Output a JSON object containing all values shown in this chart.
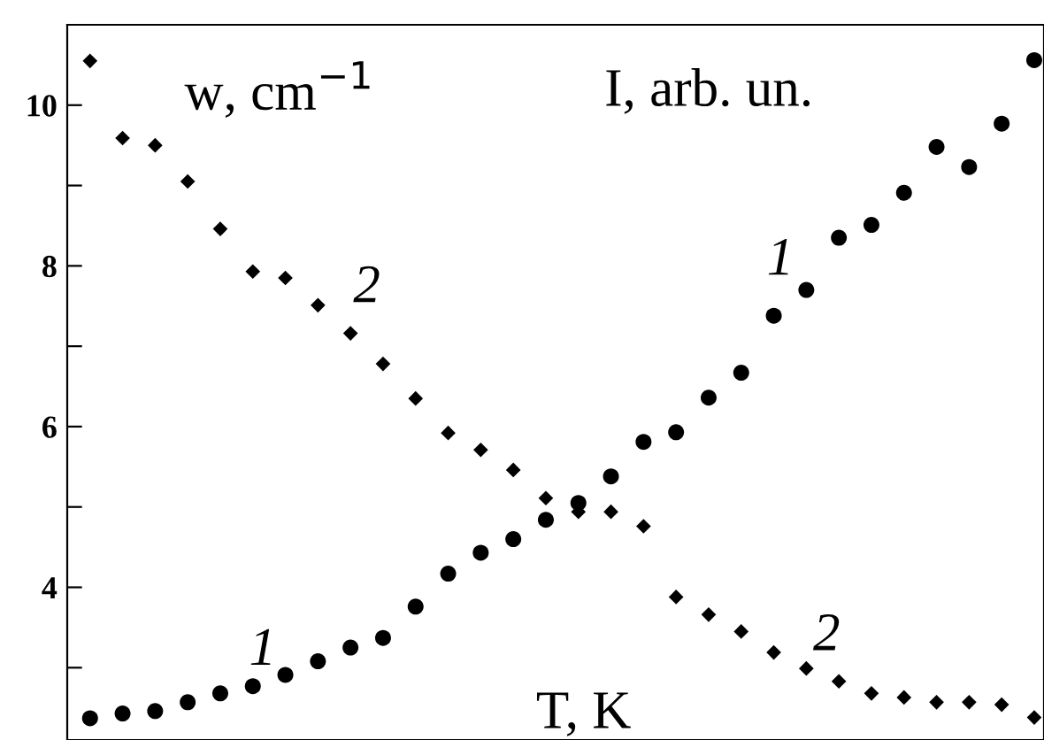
{
  "chart_data": {
    "type": "scatter",
    "categories": [
      null,
      null,
      null,
      null,
      null,
      null,
      null,
      null,
      null,
      null,
      null,
      null,
      null,
      null,
      null,
      null,
      null,
      null,
      null,
      null,
      null,
      null,
      null,
      null,
      null,
      null,
      null,
      null,
      null,
      null
    ],
    "series": [
      {
        "name": "1",
        "color": "#000000",
        "marker": "circle",
        "values": [
          2.37,
          2.43,
          2.46,
          2.57,
          2.68,
          2.77,
          2.91,
          3.08,
          3.25,
          3.37,
          3.76,
          4.17,
          4.43,
          4.6,
          4.84,
          5.05,
          5.38,
          5.81,
          5.93,
          6.36,
          6.67,
          7.38,
          7.7,
          8.35,
          8.51,
          8.91,
          9.48,
          9.23,
          9.77,
          10.56
        ]
      },
      {
        "name": "2",
        "color": "#000000",
        "marker": "diamond",
        "values": [
          10.55,
          9.59,
          9.5,
          9.05,
          8.46,
          7.93,
          7.85,
          7.51,
          7.16,
          6.78,
          6.35,
          5.92,
          5.71,
          5.46,
          5.11,
          4.94,
          4.94,
          4.76,
          3.88,
          3.66,
          3.45,
          3.19,
          2.99,
          2.83,
          2.68,
          2.63,
          2.57,
          2.57,
          2.54,
          2.38
        ]
      }
    ],
    "ylim": [
      2.1,
      11
    ],
    "yticks": [
      {
        "value": 3,
        "label": null
      },
      4,
      {
        "value": 5,
        "label": null
      },
      6,
      {
        "value": 7,
        "label": null
      },
      8,
      {
        "value": 9,
        "label": null
      },
      10
    ],
    "annotations": [
      "w, cm$^{−1}$",
      "I, arb. un.",
      "T, K"
    ],
    "grid": false,
    "legend": false
  }
}
